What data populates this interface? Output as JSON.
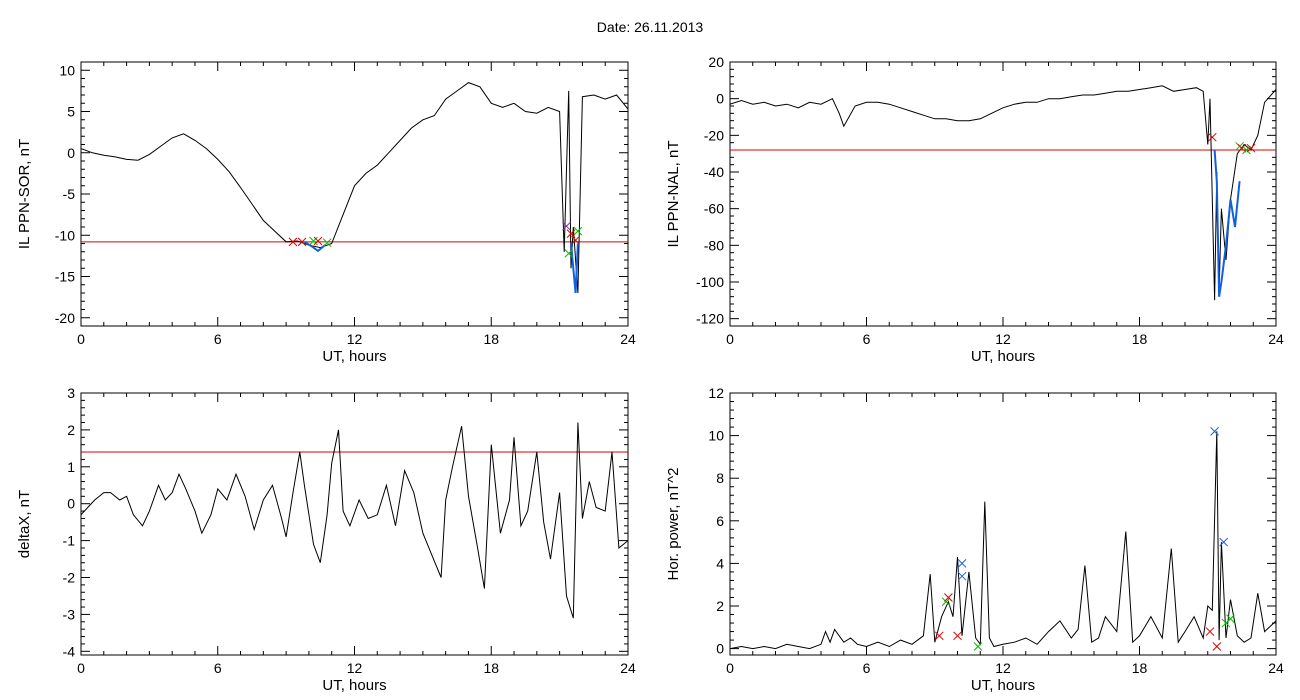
{
  "page": {
    "title": "Date:  26.11.2013"
  },
  "colors": {
    "data_line": "#000000",
    "threshold": "#e00000",
    "event_segment": "#1060e0",
    "marker_red": "#e00000",
    "marker_green": "#00c000",
    "marker_blue": "#2060e0",
    "marker_purple": "#8030a0"
  },
  "chart_data": [
    {
      "id": "sor",
      "type": "line",
      "ylabel": "IL PPN-SOR, nT",
      "xlabel": "UT, hours",
      "xlim": [
        0,
        24
      ],
      "ylim": [
        -21,
        11
      ],
      "xticks": [
        0,
        6,
        12,
        18,
        24
      ],
      "yticks": [
        10,
        5,
        0,
        -5,
        -10,
        -15,
        -20
      ],
      "threshold": -10.8,
      "series": [
        {
          "x": [
            0,
            0.5,
            1,
            1.5,
            2,
            2.5,
            3,
            3.5,
            4,
            4.5,
            5,
            5.5,
            6,
            6.5,
            7,
            7.5,
            8,
            8.5,
            9,
            9.5,
            10,
            10.5,
            11,
            11.5,
            12,
            12.5,
            13,
            13.5,
            14,
            14.5,
            15,
            15.5,
            16,
            16.5,
            17,
            17.5,
            18,
            18.5,
            19,
            19.5,
            20,
            20.5,
            21,
            21.2,
            21.4,
            21.5,
            21.6,
            21.8,
            22,
            22.5,
            23,
            23.5,
            24
          ],
          "y": [
            0.5,
            0,
            -0.3,
            -0.5,
            -0.8,
            -0.9,
            -0.2,
            0.8,
            1.8,
            2.3,
            1.5,
            0.5,
            -0.8,
            -2.3,
            -4.2,
            -6.2,
            -8.2,
            -9.5,
            -10.8,
            -10.7,
            -11.2,
            -11.5,
            -11.0,
            -7.5,
            -4,
            -2.5,
            -1.5,
            0,
            1.5,
            3.0,
            4.0,
            4.5,
            6.5,
            7.5,
            8.5,
            8.0,
            6.0,
            5.5,
            6.0,
            5.0,
            4.8,
            5.5,
            5.0,
            -12.0,
            7.5,
            -14.0,
            -9.0,
            -17.0,
            6.8,
            7.0,
            6.5,
            7.0,
            5.3
          ]
        }
      ],
      "event_segments": [
        {
          "x": [
            9.8,
            10.1,
            10.4,
            10.7
          ],
          "y": [
            -10.8,
            -11.3,
            -11.9,
            -11.2
          ]
        },
        {
          "x": [
            21.5,
            21.6,
            21.7,
            21.8
          ],
          "y": [
            -10.9,
            -14.0,
            -17.0,
            -11.0
          ]
        }
      ],
      "markers": [
        {
          "x": 9.3,
          "y": -10.8,
          "color": "red"
        },
        {
          "x": 9.7,
          "y": -10.8,
          "color": "red"
        },
        {
          "x": 10.2,
          "y": -10.7,
          "color": "green"
        },
        {
          "x": 10.4,
          "y": -10.7,
          "color": "red"
        },
        {
          "x": 10.8,
          "y": -10.9,
          "color": "green"
        },
        {
          "x": 21.3,
          "y": -8.9,
          "color": "purple"
        },
        {
          "x": 21.4,
          "y": -12.2,
          "color": "green"
        },
        {
          "x": 21.5,
          "y": -9.8,
          "color": "red"
        },
        {
          "x": 21.7,
          "y": -10.6,
          "color": "red"
        },
        {
          "x": 21.8,
          "y": -9.5,
          "color": "green"
        }
      ]
    },
    {
      "id": "nal",
      "type": "line",
      "ylabel": "IL PPN-NAL, nT",
      "xlabel": "UT, hours",
      "xlim": [
        0,
        24
      ],
      "ylim": [
        -124,
        20
      ],
      "xticks": [
        0,
        6,
        12,
        18,
        24
      ],
      "yticks": [
        20,
        0,
        -20,
        -40,
        -60,
        -80,
        -100,
        -120
      ],
      "threshold": -28,
      "series": [
        {
          "x": [
            0,
            0.5,
            1,
            1.5,
            2,
            2.5,
            3,
            3.5,
            4,
            4.5,
            4.8,
            5.0,
            5.5,
            6,
            6.5,
            7,
            7.5,
            8,
            8.5,
            9,
            9.5,
            10,
            10.5,
            11,
            11.5,
            12,
            12.5,
            13,
            13.5,
            14,
            14.5,
            15,
            15.5,
            16,
            16.5,
            17,
            17.5,
            18,
            18.5,
            19,
            19.5,
            20,
            20.5,
            20.8,
            21,
            21.1,
            21.3,
            21.4,
            21.5,
            21.6,
            21.8,
            22.0,
            22.3,
            22.6,
            22.9,
            23.2,
            23.5,
            24
          ],
          "y": [
            -3,
            -1,
            -3,
            -2,
            -4,
            -3,
            -5,
            -2,
            -3,
            0,
            -8,
            -15,
            -4,
            -2,
            -2,
            -3,
            -5,
            -7,
            -9,
            -11,
            -11,
            -12,
            -12,
            -11,
            -8,
            -5,
            -3,
            -2,
            -2,
            0,
            0,
            1,
            2,
            2,
            3,
            4,
            4,
            5,
            6,
            7,
            4,
            5,
            6,
            4,
            -25,
            0,
            -110,
            -40,
            -105,
            -60,
            -88,
            -55,
            -30,
            -25,
            -28,
            -20,
            -2,
            5
          ]
        }
      ],
      "event_segments": [
        {
          "x": [
            21.3,
            21.4,
            21.5,
            21.6,
            21.8,
            22.0,
            22.2,
            22.4
          ],
          "y": [
            -28,
            -45,
            -108,
            -100,
            -80,
            -55,
            -70,
            -45
          ]
        }
      ],
      "markers": [
        {
          "x": 21.2,
          "y": -21,
          "color": "red"
        },
        {
          "x": 22.4,
          "y": -26,
          "color": "green"
        },
        {
          "x": 22.5,
          "y": -27,
          "color": "red"
        },
        {
          "x": 22.7,
          "y": -28,
          "color": "green"
        },
        {
          "x": 22.9,
          "y": -27,
          "color": "red"
        }
      ]
    },
    {
      "id": "deltax",
      "type": "line",
      "ylabel": "deltaX, nT",
      "xlabel": "UT, hours",
      "xlim": [
        0,
        24
      ],
      "ylim": [
        -4.1,
        3
      ],
      "xticks": [
        0,
        6,
        12,
        18,
        24
      ],
      "yticks": [
        3,
        2,
        1,
        0,
        -1,
        -2,
        -3,
        -4
      ],
      "threshold": 1.4,
      "series": [
        {
          "x": [
            0,
            0.3,
            0.6,
            1.0,
            1.3,
            1.7,
            2.0,
            2.3,
            2.7,
            3.0,
            3.4,
            3.7,
            4.0,
            4.3,
            4.6,
            5.0,
            5.3,
            5.7,
            6.0,
            6.4,
            6.8,
            7.2,
            7.6,
            8.0,
            8.4,
            8.8,
            9.0,
            9.3,
            9.6,
            9.8,
            10.2,
            10.5,
            10.8,
            11.0,
            11.3,
            11.5,
            11.8,
            12.2,
            12.6,
            13.0,
            13.4,
            13.8,
            14.2,
            14.6,
            15.0,
            15.4,
            15.8,
            16.0,
            16.3,
            16.7,
            17.0,
            17.4,
            17.7,
            18.0,
            18.4,
            18.8,
            19.0,
            19.3,
            19.6,
            20.0,
            20.3,
            20.6,
            21.0,
            21.3,
            21.6,
            21.8,
            22.0,
            22.3,
            22.6,
            23.0,
            23.3,
            23.6,
            24.0
          ],
          "y": [
            -0.3,
            -0.1,
            0.1,
            0.3,
            0.3,
            0.1,
            0.2,
            -0.3,
            -0.6,
            -0.2,
            0.5,
            0.1,
            0.3,
            0.8,
            0.4,
            -0.2,
            -0.8,
            -0.3,
            0.4,
            0.1,
            0.8,
            0.2,
            -0.7,
            0.1,
            0.5,
            -0.4,
            -0.9,
            0.3,
            1.4,
            0.5,
            -1.1,
            -1.6,
            -0.3,
            1.1,
            2.0,
            -0.2,
            -0.6,
            0.1,
            -0.4,
            -0.3,
            0.5,
            -0.6,
            0.9,
            0.3,
            -0.8,
            -1.4,
            -2.0,
            0.1,
            1.0,
            2.1,
            0.2,
            -1.2,
            -2.3,
            1.6,
            -0.8,
            0.1,
            1.8,
            -0.6,
            -0.2,
            1.4,
            -0.5,
            -1.5,
            0.3,
            -2.5,
            -3.1,
            2.2,
            -0.4,
            0.6,
            -0.1,
            -0.2,
            1.4,
            -1.2,
            -1.0
          ]
        }
      ],
      "event_segments": [],
      "markers": []
    },
    {
      "id": "power",
      "type": "line",
      "ylabel": "Hor. power, nT^2",
      "xlabel": "UT, hours",
      "xlim": [
        0,
        24
      ],
      "ylim": [
        -0.3,
        12
      ],
      "xticks": [
        0,
        6,
        12,
        18,
        24
      ],
      "yticks": [
        12,
        10,
        8,
        6,
        4,
        2,
        0
      ],
      "threshold": null,
      "series": [
        {
          "x": [
            0,
            0.5,
            1,
            1.5,
            2,
            2.5,
            3,
            3.5,
            4,
            4.2,
            4.4,
            4.6,
            5.0,
            5.3,
            5.6,
            6.0,
            6.5,
            7.0,
            7.5,
            8.0,
            8.5,
            8.8,
            9.0,
            9.3,
            9.6,
            9.8,
            10.0,
            10.2,
            10.5,
            10.8,
            11.0,
            11.2,
            11.4,
            11.6,
            12.0,
            12.5,
            13.0,
            13.5,
            14.0,
            14.5,
            15.0,
            15.3,
            15.6,
            15.9,
            16.2,
            16.5,
            17.0,
            17.4,
            17.7,
            18.0,
            18.5,
            19.0,
            19.4,
            19.7,
            20.0,
            20.4,
            20.8,
            21.0,
            21.2,
            21.4,
            21.5,
            21.6,
            21.8,
            22.0,
            22.3,
            22.6,
            22.9,
            23.2,
            23.5,
            24.0
          ],
          "y": [
            0,
            0.1,
            0,
            0.1,
            0,
            0.2,
            0.1,
            0,
            0.2,
            0.8,
            0.3,
            0.9,
            0.3,
            0.5,
            0.2,
            0.1,
            0.3,
            0.1,
            0.4,
            0.2,
            0.6,
            3.5,
            0.3,
            1.5,
            2.2,
            1.5,
            4.3,
            0.6,
            3.6,
            0.5,
            0.2,
            6.9,
            0.5,
            0.1,
            0.2,
            0.3,
            0.5,
            0.2,
            0.8,
            1.3,
            0.5,
            0.9,
            3.9,
            0.3,
            0.5,
            1.5,
            0.8,
            5.5,
            0.3,
            0.6,
            1.5,
            0.5,
            4.7,
            0.3,
            0.8,
            1.5,
            0.5,
            2.0,
            1.8,
            10.2,
            0.4,
            5.0,
            0.5,
            2.3,
            0.6,
            0.3,
            0.5,
            2.6,
            0.8,
            1.3
          ]
        }
      ],
      "event_segments": [],
      "markers": [
        {
          "x": 9.2,
          "y": 0.6,
          "color": "red"
        },
        {
          "x": 9.5,
          "y": 2.2,
          "color": "green"
        },
        {
          "x": 9.6,
          "y": 2.4,
          "color": "red"
        },
        {
          "x": 10.0,
          "y": 0.6,
          "color": "red"
        },
        {
          "x": 10.2,
          "y": 4.0,
          "color": "blue"
        },
        {
          "x": 10.2,
          "y": 3.4,
          "color": "blue"
        },
        {
          "x": 10.9,
          "y": 0.1,
          "color": "green"
        },
        {
          "x": 21.1,
          "y": 0.8,
          "color": "red"
        },
        {
          "x": 21.3,
          "y": 10.2,
          "color": "blue"
        },
        {
          "x": 21.4,
          "y": 0.1,
          "color": "red"
        },
        {
          "x": 21.7,
          "y": 5.0,
          "color": "blue"
        },
        {
          "x": 21.8,
          "y": 1.2,
          "color": "green"
        },
        {
          "x": 22.0,
          "y": 1.4,
          "color": "green"
        }
      ]
    }
  ]
}
